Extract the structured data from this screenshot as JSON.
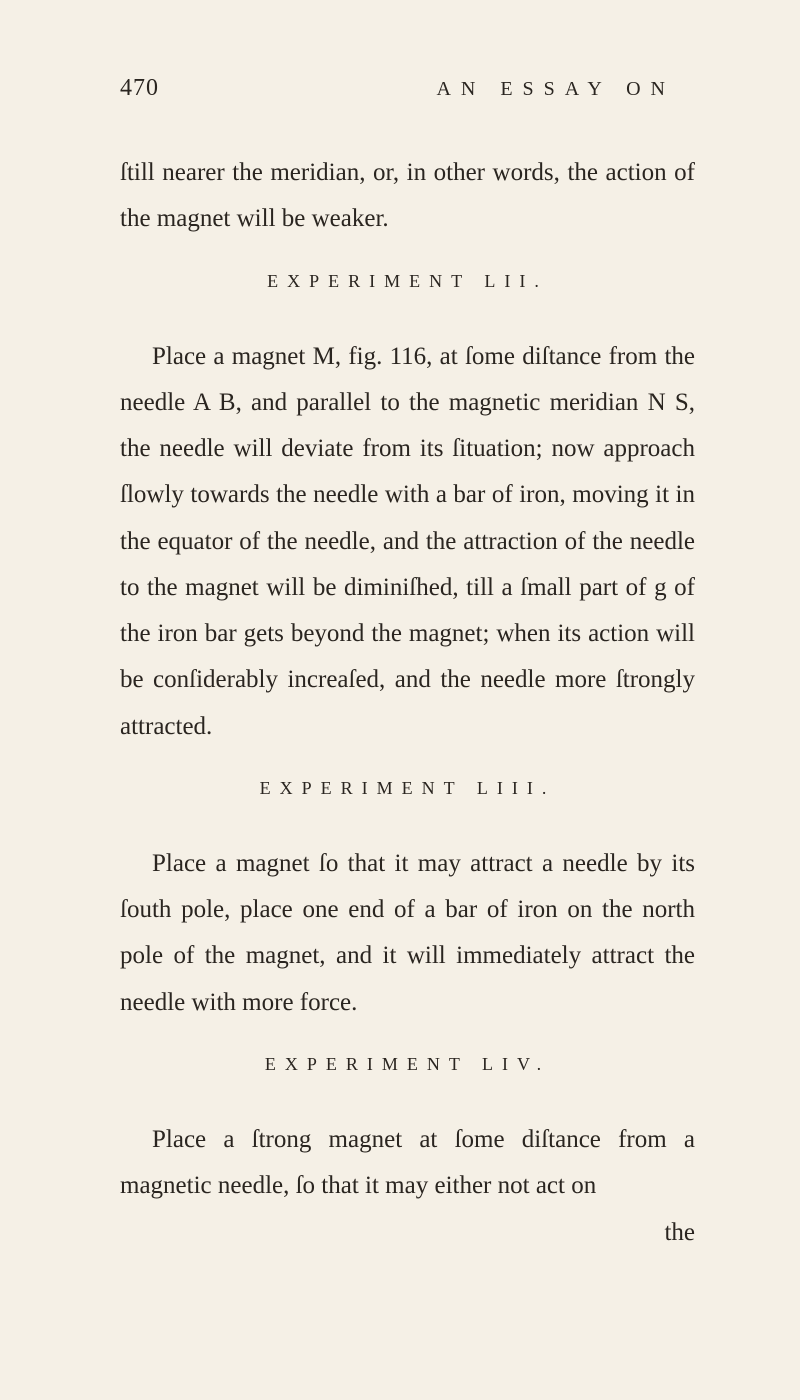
{
  "page": {
    "number": "470",
    "running_header": "AN ESSAY ON",
    "background_color": "#f5f0e6",
    "text_color": "#2a2520",
    "font_family": "Caslon, Garamond, Georgia, serif",
    "body_fontsize": 25,
    "heading_fontsize": 18,
    "line_height": 1.85
  },
  "paragraphs": {
    "p1": "ſtill nearer the meridian, or, in other words, the action of the magnet will be weaker.",
    "exp52_heading": "EXPERIMENT LII.",
    "p2": "Place a magnet M, fig. 116, at ſome diſtance from the needle A B, and parallel to the magnetic meridian N S, the needle will deviate from its ſituation; now approach ſlowly towards the needle with a bar of iron, moving it in the equator of the needle, and the attraction of the needle to the magnet will be diminiſhed, till a ſmall part of g of the iron bar gets beyond the magnet; when its action will be conſiderably increaſed, and the needle more ſtrongly attracted.",
    "exp53_heading": "EXPERIMENT LIII.",
    "p3": "Place a magnet ſo that it may attract a needle by its ſouth pole, place one end of a bar of iron on the north pole of the magnet, and it will immediately attract the needle with more force.",
    "exp54_heading": "EXPERIMENT LIV.",
    "p4": "Place a ſtrong magnet at ſome diſtance from a magnetic needle, ſo that it may either not act on",
    "catchword": "the"
  }
}
